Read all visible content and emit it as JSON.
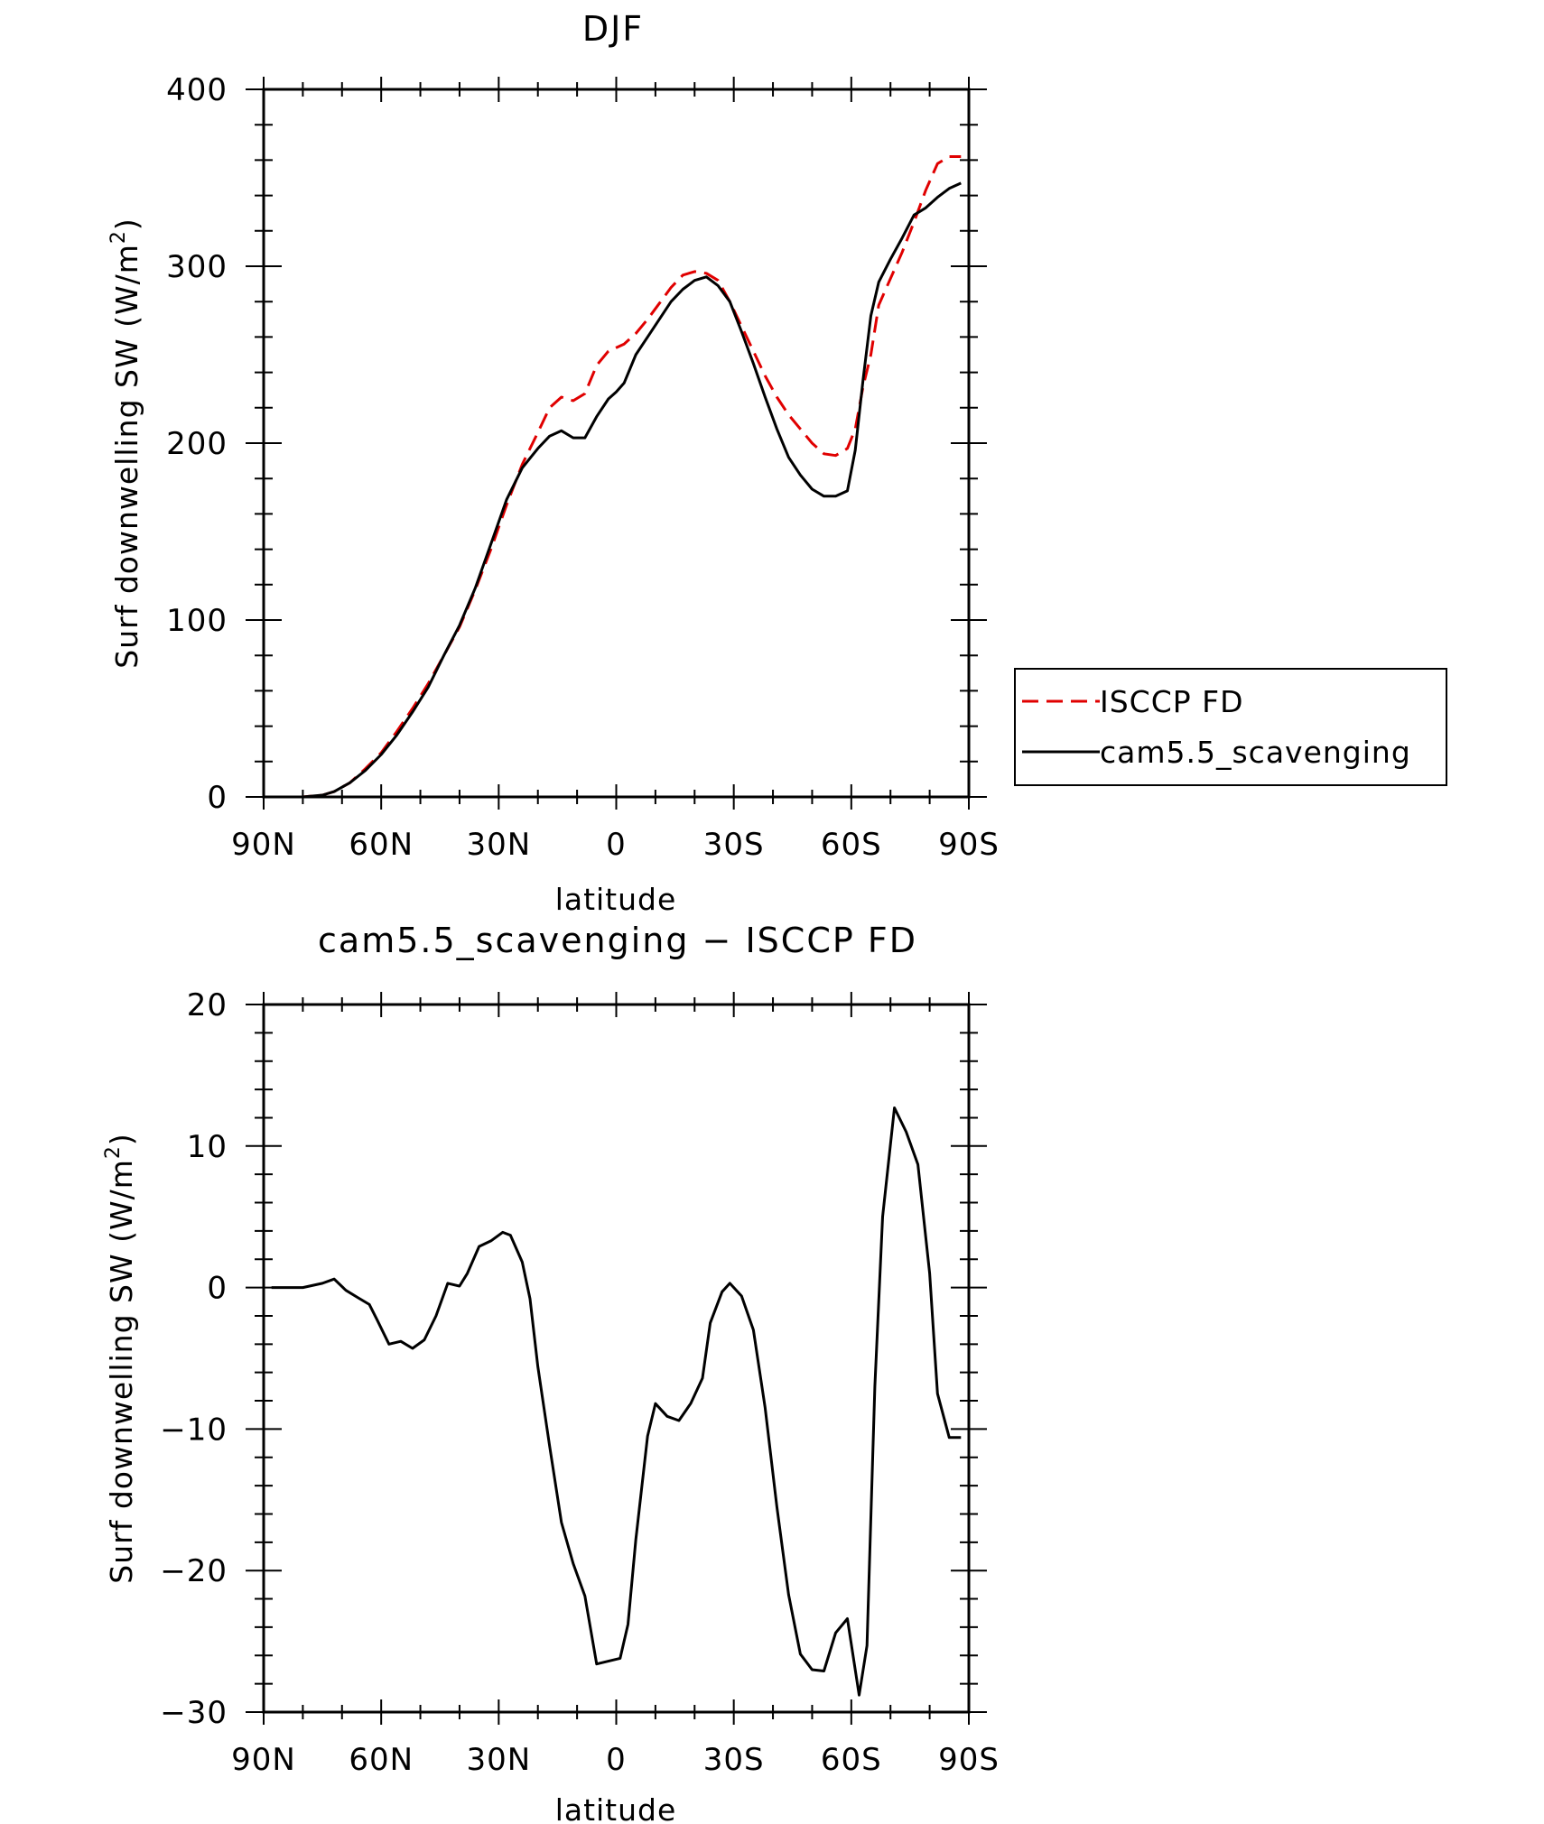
{
  "chart_data": [
    {
      "type": "line",
      "title": "DJF",
      "xlabel": "latitude",
      "ylabel": "Surf downwelling SW (W/m²)",
      "ylabel_base": "Surf downwelling SW (W/m",
      "ylabel_sup": "2",
      "ylabel_end": ")",
      "xlim": [
        -90,
        90
      ],
      "ylim": [
        0,
        400
      ],
      "xticks": [
        {
          "value": -90,
          "label": "90N"
        },
        {
          "value": -60,
          "label": "60N"
        },
        {
          "value": -30,
          "label": "30N"
        },
        {
          "value": 0,
          "label": "0"
        },
        {
          "value": 30,
          "label": "30S"
        },
        {
          "value": 60,
          "label": "60S"
        },
        {
          "value": 90,
          "label": "90S"
        }
      ],
      "yticks": [
        {
          "value": 0,
          "label": "0"
        },
        {
          "value": 100,
          "label": "100"
        },
        {
          "value": 200,
          "label": "200"
        },
        {
          "value": 300,
          "label": "300"
        },
        {
          "value": 400,
          "label": "400"
        }
      ],
      "legend": {
        "position": "right-center",
        "entries": [
          {
            "name": "ISCCP FD",
            "color": "#e00000",
            "style": "dashed"
          },
          {
            "name": "cam5.5_scavenging",
            "color": "#000000",
            "style": "solid"
          }
        ]
      },
      "series": [
        {
          "name": "ISCCP FD",
          "color": "#e00000",
          "style": "dashed",
          "x": [
            -88,
            -80,
            -75,
            -72,
            -68,
            -64,
            -60,
            -56,
            -52,
            -48,
            -44,
            -40,
            -36,
            -32,
            -28,
            -24,
            -20,
            -17,
            -14,
            -11,
            -8,
            -5,
            -2,
            0,
            2,
            5,
            8,
            11,
            14,
            17,
            20,
            23,
            26,
            29,
            32,
            35,
            38,
            41,
            44,
            47,
            50,
            53,
            56,
            59,
            61,
            63,
            65,
            67,
            70,
            73,
            76,
            79,
            82,
            85,
            88
          ],
          "y": [
            0,
            0,
            1,
            3,
            8,
            16,
            25,
            37,
            50,
            64,
            80,
            96,
            117,
            140,
            165,
            188,
            206,
            220,
            226,
            224,
            228,
            244,
            252,
            254,
            256,
            262,
            270,
            279,
            288,
            295,
            297,
            296,
            292,
            280,
            266,
            252,
            238,
            226,
            216,
            208,
            200,
            194,
            193,
            197,
            208,
            232,
            250,
            278,
            293,
            308,
            325,
            343,
            358,
            362,
            362
          ]
        },
        {
          "name": "cam5.5_scavenging",
          "color": "#000000",
          "style": "solid",
          "x": [
            -88,
            -80,
            -75,
            -72,
            -68,
            -64,
            -60,
            -56,
            -52,
            -48,
            -44,
            -40,
            -36,
            -32,
            -28,
            -24,
            -20,
            -17,
            -14,
            -11,
            -8,
            -5,
            -2,
            0,
            2,
            5,
            8,
            11,
            14,
            17,
            20,
            23,
            26,
            29,
            32,
            35,
            38,
            41,
            44,
            47,
            50,
            53,
            56,
            59,
            61,
            63,
            65,
            67,
            70,
            73,
            76,
            79,
            82,
            85,
            88
          ],
          "y": [
            0,
            0,
            1,
            3,
            8,
            15,
            24,
            35,
            48,
            62,
            80,
            97,
            118,
            143,
            168,
            186,
            197,
            204,
            207,
            203,
            203,
            215,
            225,
            229,
            234,
            250,
            260,
            270,
            280,
            287,
            292,
            294,
            289,
            280,
            263,
            245,
            226,
            208,
            192,
            182,
            174,
            170,
            170,
            173,
            196,
            236,
            272,
            291,
            304,
            316,
            329,
            333,
            339,
            344,
            347
          ]
        }
      ]
    },
    {
      "type": "line",
      "title": "cam5.5_scavenging − ISCCP FD",
      "xlabel": "latitude",
      "ylabel": "Surf downwelling SW (W/m²)",
      "ylabel_base": "Surf downwelling SW (W/m",
      "ylabel_sup": "2",
      "ylabel_end": ")",
      "xlim": [
        -90,
        90
      ],
      "ylim": [
        -30,
        20
      ],
      "xticks": [
        {
          "value": -90,
          "label": "90N"
        },
        {
          "value": -60,
          "label": "60N"
        },
        {
          "value": -30,
          "label": "30N"
        },
        {
          "value": 0,
          "label": "0"
        },
        {
          "value": 30,
          "label": "30S"
        },
        {
          "value": 60,
          "label": "60S"
        },
        {
          "value": 90,
          "label": "90S"
        }
      ],
      "yticks": [
        {
          "value": -30,
          "label": "−30"
        },
        {
          "value": -20,
          "label": "−20"
        },
        {
          "value": -10,
          "label": "−10"
        },
        {
          "value": 0,
          "label": "0"
        },
        {
          "value": 10,
          "label": "10"
        },
        {
          "value": 20,
          "label": "20"
        }
      ],
      "series": [
        {
          "name": "cam5.5_scavenging − ISCCP FD",
          "color": "#000000",
          "style": "solid",
          "x": [
            -88,
            -80,
            -75,
            -72,
            -69,
            -66,
            -63,
            -61,
            -58,
            -55,
            -52,
            -49,
            -46,
            -43,
            -40,
            -38,
            -35,
            -32,
            -29,
            -27,
            -24,
            -22,
            -20,
            -17,
            -14,
            -11,
            -8,
            -5,
            -2,
            1,
            3,
            5,
            8,
            10,
            13,
            16,
            19,
            22,
            24,
            27,
            29,
            32,
            35,
            38,
            41,
            44,
            47,
            50,
            53,
            56,
            59,
            62,
            64,
            66,
            68,
            71,
            74,
            77,
            80,
            82,
            85,
            88
          ],
          "y": [
            0,
            0,
            0.3,
            0.6,
            -0.2,
            -0.7,
            -1.2,
            -2.3,
            -4.0,
            -3.8,
            -4.3,
            -3.7,
            -2.0,
            0.3,
            0.1,
            1.0,
            2.9,
            3.3,
            3.9,
            3.7,
            1.8,
            -0.8,
            -5.6,
            -11.2,
            -16.6,
            -19.5,
            -21.8,
            -26.6,
            -26.4,
            -26.2,
            -23.8,
            -17.8,
            -10.5,
            -8.2,
            -9.1,
            -9.4,
            -8.2,
            -6.4,
            -2.5,
            -0.3,
            0.3,
            -0.6,
            -3.0,
            -8.5,
            -15.5,
            -21.7,
            -25.9,
            -27.0,
            -27.1,
            -24.4,
            -23.4,
            -28.8,
            -25.3,
            -7.0,
            5.0,
            12.7,
            11.0,
            8.7,
            1.0,
            -7.5,
            -10.6,
            -10.6
          ]
        }
      ]
    }
  ]
}
